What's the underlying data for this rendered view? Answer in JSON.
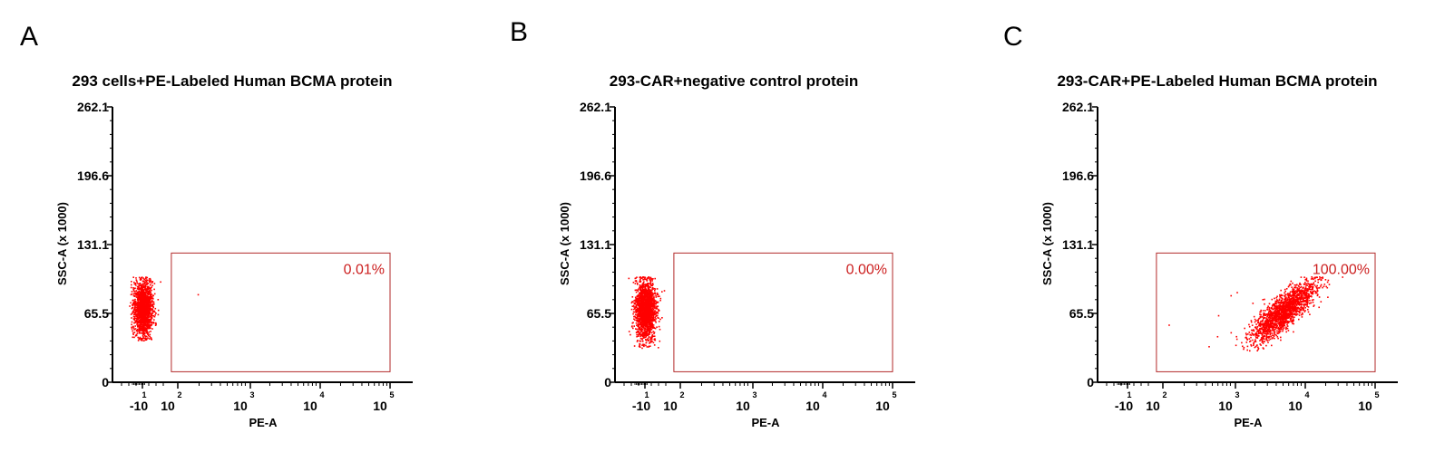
{
  "chart_data": [
    {
      "type": "scatter",
      "panel": "A",
      "title": "293 cells+PE-Labeled Human BCMA protein",
      "xlabel": "PE-A",
      "ylabel": "SSC-A (x 1000)",
      "x_scale": "biexponential",
      "x_tick_labels": [
        {
          "base": "-10",
          "exp": "1"
        },
        {
          "base": "10",
          "exp": "2"
        },
        {
          "base": "10",
          "exp": "3"
        },
        {
          "base": "10",
          "exp": "4"
        },
        {
          "base": "10",
          "exp": "5"
        }
      ],
      "y_tick_labels": [
        "0",
        "65.5",
        "131.1",
        "196.6",
        "262.1"
      ],
      "ylim": [
        0,
        262.1
      ],
      "gate": {
        "percent": "0.01%",
        "x_range": [
          80,
          100000
        ],
        "y_range": [
          10,
          123
        ]
      },
      "populations": [
        {
          "n": 1600,
          "x_center": -10,
          "x_spread": 0.13,
          "y_center": 70,
          "y_spread": 13,
          "y_min": 40,
          "y_max": 101,
          "shape": "box"
        }
      ],
      "outliers": [
        [
          190,
          84
        ]
      ],
      "point_color": "#ff0000"
    },
    {
      "type": "scatter",
      "panel": "B",
      "title": "293-CAR+negative control protein",
      "xlabel": "PE-A",
      "ylabel": "SSC-A (x 1000)",
      "x_scale": "biexponential",
      "x_tick_labels": [
        {
          "base": "-10",
          "exp": "1"
        },
        {
          "base": "10",
          "exp": "2"
        },
        {
          "base": "10",
          "exp": "3"
        },
        {
          "base": "10",
          "exp": "4"
        },
        {
          "base": "10",
          "exp": "5"
        }
      ],
      "y_tick_labels": [
        "0",
        "65.5",
        "131.1",
        "196.6",
        "262.1"
      ],
      "ylim": [
        0,
        262.1
      ],
      "gate": {
        "percent": "0.00%",
        "x_range": [
          80,
          100000
        ],
        "y_range": [
          10,
          123
        ]
      },
      "populations": [
        {
          "n": 1900,
          "x_center": -10,
          "x_spread": 0.14,
          "y_center": 70,
          "y_spread": 14,
          "y_min": 33,
          "y_max": 101,
          "shape": "ellipse"
        }
      ],
      "outliers": [],
      "point_color": "#ff0000"
    },
    {
      "type": "scatter",
      "panel": "C",
      "title": "293-CAR+PE-Labeled Human BCMA protein",
      "xlabel": "PE-A",
      "ylabel": "SSC-A (x 1000)",
      "x_scale": "biexponential",
      "x_tick_labels": [
        {
          "base": "-10",
          "exp": "1"
        },
        {
          "base": "10",
          "exp": "2"
        },
        {
          "base": "10",
          "exp": "3"
        },
        {
          "base": "10",
          "exp": "4"
        },
        {
          "base": "10",
          "exp": "5"
        }
      ],
      "y_tick_labels": [
        "0",
        "65.5",
        "131.1",
        "196.6",
        "262.1"
      ],
      "ylim": [
        0,
        262.1
      ],
      "gate": {
        "percent": "100.00%",
        "x_range": [
          80,
          100000
        ],
        "y_range": [
          10,
          123
        ]
      },
      "populations": [
        {
          "n": 1800,
          "x_center": 5000,
          "x_log_spread": 0.22,
          "y_center": 68,
          "y_spread": 14,
          "y_min": 30,
          "y_max": 101,
          "corr": 0.8,
          "shape": "ellipse"
        }
      ],
      "outliers": [
        [
          120,
          55
        ],
        [
          600,
          64
        ],
        [
          580,
          44
        ],
        [
          900,
          83
        ],
        [
          1100,
          86
        ],
        [
          1400,
          52
        ],
        [
          1700,
          40
        ],
        [
          2100,
          36
        ]
      ],
      "point_color": "#ff0000"
    }
  ]
}
